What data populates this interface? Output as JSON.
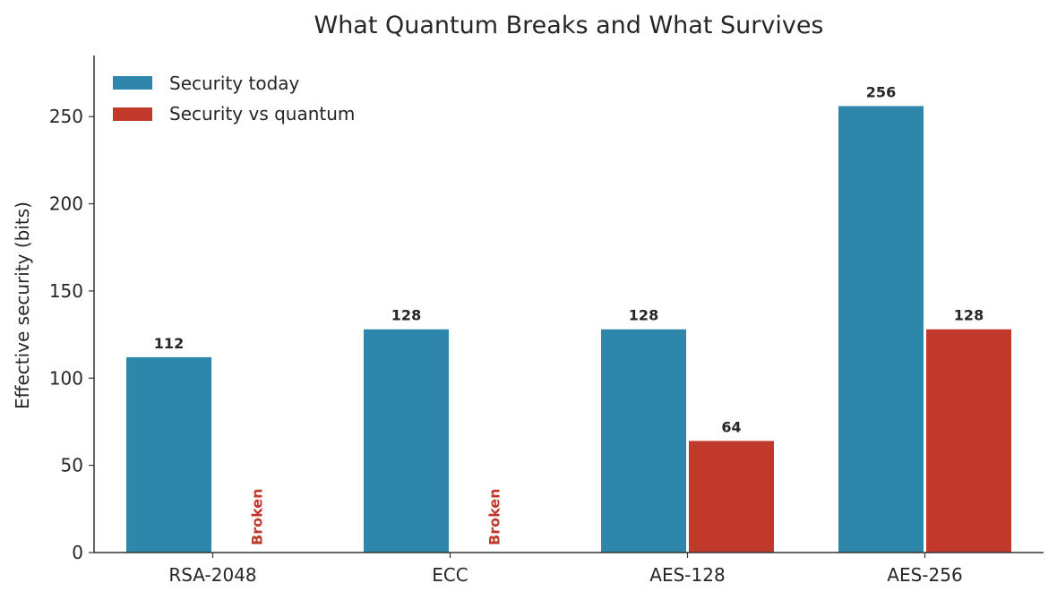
{
  "chart_data": {
    "type": "bar",
    "title": "What Quantum Breaks and What Survives",
    "xlabel": "",
    "ylabel": "Effective security (bits)",
    "categories": [
      "RSA-2048",
      "ECC",
      "AES-128",
      "AES-256"
    ],
    "series": [
      {
        "name": "Security today",
        "color": "#2e86ab",
        "values": [
          112,
          128,
          128,
          256
        ]
      },
      {
        "name": "Security vs quantum",
        "color": "#c0392b",
        "values": [
          0,
          0,
          64,
          128
        ]
      }
    ],
    "value_labels": {
      "series_0": [
        "112",
        "128",
        "128",
        "256"
      ],
      "series_1": [
        null,
        null,
        "64",
        "128"
      ]
    },
    "annotations": [
      {
        "category": "RSA-2048",
        "series": 1,
        "text": "Broken",
        "color": "#c0392b"
      },
      {
        "category": "ECC",
        "series": 1,
        "text": "Broken",
        "color": "#c0392b"
      }
    ],
    "ylim": [
      0,
      285
    ],
    "yticks": [
      0,
      50,
      100,
      150,
      200,
      250
    ],
    "grid": false,
    "legend_position": "top-left"
  }
}
